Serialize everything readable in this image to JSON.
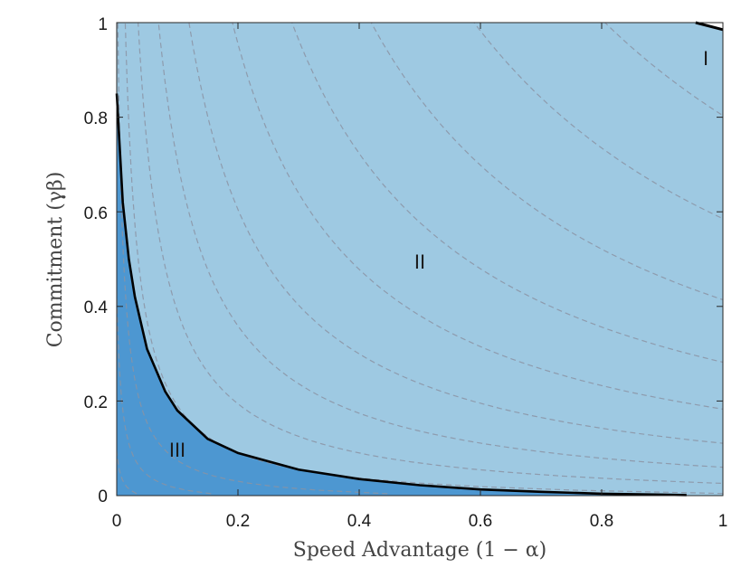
{
  "chart_data": {
    "type": "area",
    "title": "",
    "xlabel": "Speed Advantage (1 − α)",
    "ylabel": "Commitment (γβ)",
    "xlim": [
      0,
      1
    ],
    "ylim": [
      0,
      1
    ],
    "grid": false,
    "x_ticks": [
      0,
      0.2,
      0.4,
      0.6,
      0.8,
      1
    ],
    "x_tick_labels": [
      "0",
      "0.2",
      "0.4",
      "0.6",
      "0.8",
      "1"
    ],
    "y_ticks": [
      0,
      0.2,
      0.4,
      0.6,
      0.8,
      1
    ],
    "y_tick_labels": [
      "0",
      "0.2",
      "0.4",
      "0.6",
      "0.8",
      "1"
    ],
    "regions": [
      {
        "label": "I",
        "at": [
          0.97,
          0.93
        ]
      },
      {
        "label": "II",
        "at": [
          0.5,
          0.5
        ]
      },
      {
        "label": "III",
        "at": [
          0.1,
          0.1
        ]
      }
    ],
    "boundary_III_II": {
      "x": [
        0.0,
        0.01,
        0.02,
        0.03,
        0.05,
        0.08,
        0.1,
        0.15,
        0.2,
        0.3,
        0.4,
        0.5,
        0.6,
        0.7,
        0.8,
        0.9,
        0.94
      ],
      "y": [
        0.85,
        0.62,
        0.5,
        0.42,
        0.31,
        0.22,
        0.18,
        0.12,
        0.09,
        0.055,
        0.035,
        0.022,
        0.013,
        0.008,
        0.004,
        0.002,
        0.001
      ]
    },
    "boundary_II_I": {
      "x": [
        0.955,
        1.0
      ],
      "y": [
        1.0,
        0.985
      ]
    },
    "contour_levels": [
      0.03,
      0.06,
      0.1,
      0.15,
      0.21,
      0.28,
      0.36,
      0.45,
      0.55,
      0.66,
      0.78,
      0.91,
      1.05,
      1.2
    ],
    "colors": {
      "region_I": "#ffffff",
      "region_II": "#9ec9e2",
      "region_III": "#4d97d1",
      "boundary": "#000000",
      "contour": "#8b93a3"
    }
  }
}
